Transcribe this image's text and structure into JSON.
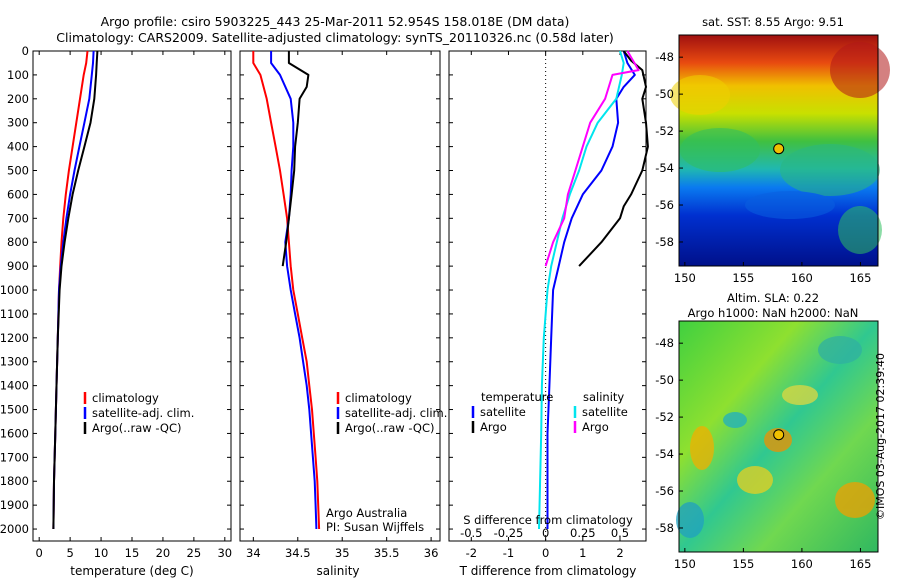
{
  "header": {
    "line1": "Argo profile: csiro 5903225_443 25-Mar-2011 52.954S 158.018E (DM data)",
    "line2": "Climatology: CARS2009. Satellite-adjusted climatology: synTS_20110326.nc (0.58d later)"
  },
  "credit": {
    "imos": "©IMOS 03-Aug-2017 02:39:40",
    "institution": "Argo Australia",
    "pi": "PI: Susan Wijffels"
  },
  "colors": {
    "climatology": "#ff0000",
    "satellite": "#0000ff",
    "argo": "#000000",
    "sal_satellite": "#00e5ee",
    "sal_argo": "#ff00ff"
  },
  "chart_data": [
    {
      "type": "line",
      "xlabel": "temperature (deg C)",
      "ylim": [
        2050,
        0
      ],
      "xlim": [
        -1,
        31
      ],
      "xticks": [
        0,
        5,
        10,
        15,
        20,
        25,
        30
      ],
      "yticks": [
        0,
        100,
        200,
        300,
        400,
        500,
        600,
        700,
        800,
        900,
        1000,
        1100,
        1200,
        1300,
        1400,
        1500,
        1600,
        1700,
        1800,
        1900,
        2000
      ],
      "legend": [
        "climatology",
        "satellite-adj. clim.",
        "Argo(..raw -QC)"
      ],
      "series": [
        {
          "name": "climatology",
          "color": "#ff0000",
          "points": [
            [
              7.8,
              0
            ],
            [
              7.6,
              50
            ],
            [
              7.2,
              100
            ],
            [
              6.6,
              200
            ],
            [
              6.0,
              300
            ],
            [
              5.4,
              400
            ],
            [
              4.8,
              500
            ],
            [
              4.3,
              600
            ],
            [
              3.9,
              700
            ],
            [
              3.6,
              800
            ],
            [
              3.4,
              900
            ],
            [
              3.2,
              1000
            ],
            [
              3.0,
              1200
            ],
            [
              2.8,
              1400
            ],
            [
              2.6,
              1600
            ],
            [
              2.4,
              1800
            ],
            [
              2.3,
              2000
            ]
          ]
        },
        {
          "name": "satellite-adj. clim.",
          "color": "#0000ff",
          "points": [
            [
              8.8,
              0
            ],
            [
              8.7,
              50
            ],
            [
              8.5,
              100
            ],
            [
              8.1,
              200
            ],
            [
              7.3,
              300
            ],
            [
              6.5,
              400
            ],
            [
              5.7,
              500
            ],
            [
              5.0,
              600
            ],
            [
              4.4,
              700
            ],
            [
              3.9,
              800
            ],
            [
              3.5,
              900
            ],
            [
              3.2,
              1000
            ],
            [
              3.0,
              1200
            ],
            [
              2.8,
              1400
            ],
            [
              2.6,
              1600
            ],
            [
              2.4,
              1800
            ],
            [
              2.3,
              2000
            ]
          ]
        },
        {
          "name": "Argo(..raw -QC)",
          "color": "#000000",
          "points": [
            [
              9.4,
              0
            ],
            [
              9.3,
              50
            ],
            [
              9.2,
              100
            ],
            [
              8.9,
              200
            ],
            [
              8.3,
              300
            ],
            [
              7.3,
              400
            ],
            [
              6.3,
              500
            ],
            [
              5.4,
              600
            ],
            [
              4.7,
              700
            ],
            [
              4.1,
              800
            ],
            [
              3.6,
              900
            ],
            [
              3.3,
              1000
            ],
            [
              3.0,
              1200
            ],
            [
              2.8,
              1400
            ],
            [
              2.6,
              1600
            ],
            [
              2.4,
              1800
            ],
            [
              2.3,
              2000
            ]
          ]
        }
      ]
    },
    {
      "type": "line",
      "xlabel": "salinity",
      "ylim": [
        2050,
        0
      ],
      "xlim": [
        33.85,
        36.1
      ],
      "xticks": [
        34,
        34.5,
        35,
        35.5,
        36
      ],
      "legend": [
        "climatology",
        "satellite-adj. clim.",
        "Argo(..raw -QC)"
      ],
      "series": [
        {
          "name": "climatology",
          "color": "#ff0000",
          "points": [
            [
              34.0,
              0
            ],
            [
              34.0,
              50
            ],
            [
              34.08,
              100
            ],
            [
              34.15,
              200
            ],
            [
              34.2,
              300
            ],
            [
              34.25,
              400
            ],
            [
              34.3,
              500
            ],
            [
              34.34,
              600
            ],
            [
              34.38,
              700
            ],
            [
              34.4,
              800
            ],
            [
              34.42,
              900
            ],
            [
              34.45,
              1000
            ],
            [
              34.5,
              1100
            ],
            [
              34.55,
              1200
            ],
            [
              34.6,
              1300
            ],
            [
              34.63,
              1400
            ],
            [
              34.66,
              1500
            ],
            [
              34.68,
              1600
            ],
            [
              34.7,
              1700
            ],
            [
              34.72,
              1800
            ],
            [
              34.73,
              1900
            ],
            [
              34.74,
              2000
            ]
          ]
        },
        {
          "name": "satellite-adj. clim.",
          "color": "#0000ff",
          "points": [
            [
              34.2,
              0
            ],
            [
              34.2,
              50
            ],
            [
              34.3,
              100
            ],
            [
              34.42,
              200
            ],
            [
              34.45,
              300
            ],
            [
              34.45,
              400
            ],
            [
              34.43,
              500
            ],
            [
              34.42,
              600
            ],
            [
              34.4,
              700
            ],
            [
              34.36,
              800
            ],
            [
              34.38,
              900
            ],
            [
              34.42,
              1000
            ],
            [
              34.47,
              1100
            ],
            [
              34.52,
              1200
            ],
            [
              34.56,
              1300
            ],
            [
              34.6,
              1400
            ],
            [
              34.63,
              1500
            ],
            [
              34.65,
              1600
            ],
            [
              34.67,
              1700
            ],
            [
              34.69,
              1800
            ],
            [
              34.7,
              1900
            ],
            [
              34.71,
              2000
            ]
          ]
        },
        {
          "name": "Argo(..raw -QC)",
          "color": "#000000",
          "points": [
            [
              34.4,
              0
            ],
            [
              34.4,
              50
            ],
            [
              34.62,
              100
            ],
            [
              34.6,
              150
            ],
            [
              34.52,
              200
            ],
            [
              34.5,
              300
            ],
            [
              34.47,
              400
            ],
            [
              34.46,
              500
            ],
            [
              34.43,
              600
            ],
            [
              34.4,
              700
            ],
            [
              34.37,
              800
            ],
            [
              34.33,
              900
            ]
          ]
        }
      ]
    },
    {
      "type": "line",
      "xlabel": "T difference from climatology",
      "xlabel_top": "S difference from climatology",
      "ylim": [
        2050,
        0
      ],
      "xlim": [
        -2.6,
        2.7
      ],
      "xticks": [
        -2,
        -1,
        0,
        1,
        2
      ],
      "xticks_top": [
        "-0.5",
        "-0.25",
        "0",
        "0.25",
        "0.5"
      ],
      "legend_titles": [
        "temperature",
        "salinity"
      ],
      "legend": [
        "satellite",
        "Argo",
        "satellite",
        "Argo"
      ],
      "series": [
        {
          "name": "satellite",
          "group": "temperature",
          "color": "#0000ff",
          "points": [
            [
              2.1,
              0
            ],
            [
              2.2,
              50
            ],
            [
              2.4,
              100
            ],
            [
              2.1,
              150
            ],
            [
              1.9,
              200
            ],
            [
              1.95,
              300
            ],
            [
              1.8,
              400
            ],
            [
              1.5,
              500
            ],
            [
              1.0,
              600
            ],
            [
              0.7,
              700
            ],
            [
              0.5,
              800
            ],
            [
              0.35,
              900
            ],
            [
              0.2,
              1000
            ],
            [
              0.15,
              1200
            ],
            [
              0.1,
              1400
            ],
            [
              0.05,
              1600
            ],
            [
              0.05,
              1800
            ],
            [
              0.05,
              2000
            ]
          ]
        },
        {
          "name": "Argo",
          "group": "temperature",
          "color": "#000000",
          "points": [
            [
              2.1,
              0
            ],
            [
              2.3,
              40
            ],
            [
              2.6,
              80
            ],
            [
              2.7,
              150
            ],
            [
              2.6,
              200
            ],
            [
              2.7,
              300
            ],
            [
              2.75,
              400
            ],
            [
              2.6,
              500
            ],
            [
              2.3,
              600
            ],
            [
              2.1,
              650
            ],
            [
              2.0,
              700
            ],
            [
              1.5,
              800
            ],
            [
              0.9,
              900
            ]
          ]
        },
        {
          "name": "satellite",
          "group": "salinity",
          "color": "#00e5ee",
          "points": [
            [
              2.0,
              0
            ],
            [
              2.1,
              50
            ],
            [
              2.05,
              100
            ],
            [
              1.9,
              200
            ],
            [
              1.4,
              300
            ],
            [
              1.1,
              400
            ],
            [
              0.9,
              500
            ],
            [
              0.65,
              600
            ],
            [
              0.45,
              700
            ],
            [
              0.3,
              800
            ],
            [
              0.15,
              900
            ],
            [
              0.05,
              1000
            ],
            [
              -0.05,
              1200
            ],
            [
              -0.1,
              1400
            ],
            [
              -0.12,
              1600
            ],
            [
              -0.15,
              1800
            ],
            [
              -0.18,
              2000
            ]
          ]
        },
        {
          "name": "Argo",
          "group": "salinity",
          "color": "#ff00ff",
          "points": [
            [
              2.2,
              0
            ],
            [
              2.5,
              80
            ],
            [
              1.8,
              100
            ],
            [
              1.6,
              200
            ],
            [
              1.2,
              300
            ],
            [
              1.0,
              400
            ],
            [
              0.8,
              500
            ],
            [
              0.6,
              600
            ],
            [
              0.5,
              700
            ],
            [
              0.2,
              800
            ],
            [
              0.0,
              900
            ]
          ]
        }
      ]
    },
    {
      "type": "heatmap",
      "title": "sat. SST: 8.55 Argo: 9.51",
      "xlim": [
        149.5,
        166.5
      ],
      "ylim": [
        -59.3,
        -46.8
      ],
      "xticks": [
        150,
        155,
        160,
        165
      ],
      "yticks": [
        -48,
        -50,
        -52,
        -54,
        -56,
        -58
      ],
      "marker": [
        158.018,
        -52.954
      ]
    },
    {
      "type": "heatmap",
      "title": "Altim. SLA: 0.22",
      "subtitle": "Argo h1000: NaN h2000: NaN",
      "xlim": [
        149.5,
        166.5
      ],
      "ylim": [
        -59.3,
        -46.8
      ],
      "xticks": [
        150,
        155,
        160,
        165
      ],
      "yticks": [
        -48,
        -50,
        -52,
        -54,
        -56,
        -58
      ],
      "marker": [
        158.018,
        -52.954
      ]
    }
  ]
}
